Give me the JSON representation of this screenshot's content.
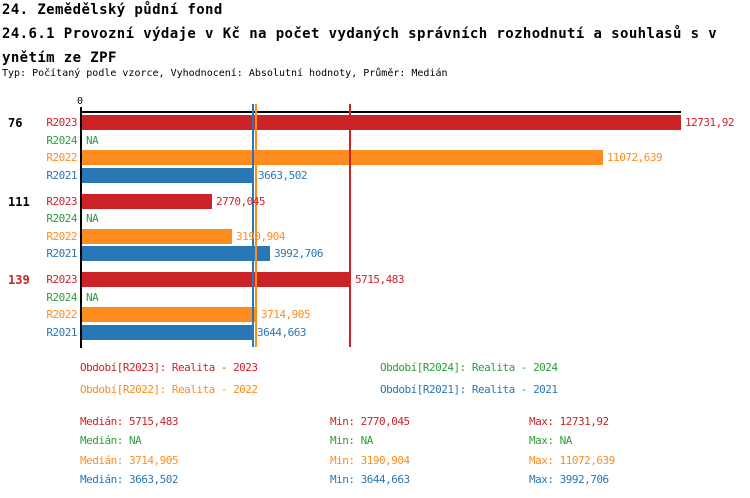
{
  "header": {
    "title_line1": "24. Zemědělský půdní fond",
    "title_line2": "24.6.1 Provozní výdaje v Kč na počet vydaných správních rozhodnutí a souhlasů s v",
    "title_line3": "ynětím ze ZPF",
    "subtitle": "Typ: Počítaný podle vzorce, Vyhodnocení: Absolutní hodnoty, Průměr: Medián"
  },
  "colors": {
    "R2023": "#cc2328",
    "R2024": "#2f9b3f",
    "R2022": "#ff8c1e",
    "R2021": "#2977b5",
    "axis": "#000000",
    "group_label_default": "#000000",
    "group_label_highlight": "#cc2328"
  },
  "chart_data": {
    "type": "bar",
    "orientation": "horizontal",
    "title": "24.6.1 Provozní výdaje v Kč na počet vydaných správních rozhodnutí a souhlasů s vynětím ze ZPF",
    "xlabel": "",
    "ylabel": "",
    "xlim": [
      0,
      12731.92
    ],
    "axis_zero_label": "0",
    "grid": false,
    "legend_position": "bottom",
    "series_order": [
      "R2023",
      "R2024",
      "R2022",
      "R2021"
    ],
    "groups": [
      {
        "label": "76",
        "label_highlight": false,
        "bars": [
          {
            "series": "R2023",
            "value": 12731.92,
            "display": "12731,92"
          },
          {
            "series": "R2024",
            "value": null,
            "display": "NA"
          },
          {
            "series": "R2022",
            "value": 11072.639,
            "display": "11072,639"
          },
          {
            "series": "R2021",
            "value": 3663.502,
            "display": "3663,502"
          }
        ]
      },
      {
        "label": "111",
        "label_highlight": false,
        "bars": [
          {
            "series": "R2023",
            "value": 2770.045,
            "display": "2770,045"
          },
          {
            "series": "R2024",
            "value": null,
            "display": "NA"
          },
          {
            "series": "R2022",
            "value": 3190.904,
            "display": "3190,904"
          },
          {
            "series": "R2021",
            "value": 3992.706,
            "display": "3992,706"
          }
        ]
      },
      {
        "label": "139",
        "label_highlight": true,
        "bars": [
          {
            "series": "R2023",
            "value": 5715.483,
            "display": "5715,483"
          },
          {
            "series": "R2024",
            "value": null,
            "display": "NA"
          },
          {
            "series": "R2022",
            "value": 3714.905,
            "display": "3714,905"
          },
          {
            "series": "R2021",
            "value": 3644.663,
            "display": "3644,663"
          }
        ]
      }
    ],
    "median_lines": [
      {
        "series": "R2023",
        "value": 5715.483
      },
      {
        "series": "R2022",
        "value": 3714.905
      },
      {
        "series": "R2021",
        "value": 3663.502
      }
    ]
  },
  "legend": {
    "items": [
      {
        "series": "R2023",
        "label": "Období[R2023]: Realita - 2023",
        "col": 0,
        "row": 0
      },
      {
        "series": "R2024",
        "label": "Období[R2024]: Realita - 2024",
        "col": 1,
        "row": 0
      },
      {
        "series": "R2022",
        "label": "Období[R2022]: Realita - 2022",
        "col": 0,
        "row": 1
      },
      {
        "series": "R2021",
        "label": "Období[R2021]: Realita - 2021",
        "col": 1,
        "row": 1
      }
    ]
  },
  "stats": {
    "rows": [
      {
        "series": "R2023",
        "median": "Medián: 5715,483",
        "min": "Min: 2770,045",
        "max": "Max: 12731,92"
      },
      {
        "series": "R2024",
        "median": "Medián: NA",
        "min": "Min: NA",
        "max": "Max: NA"
      },
      {
        "series": "R2022",
        "median": "Medián: 3714,905",
        "min": "Min: 3190,904",
        "max": "Max: 11072,639"
      },
      {
        "series": "R2021",
        "median": "Medián: 3663,502",
        "min": "Min: 3644,663",
        "max": "Max: 3992,706"
      }
    ]
  }
}
